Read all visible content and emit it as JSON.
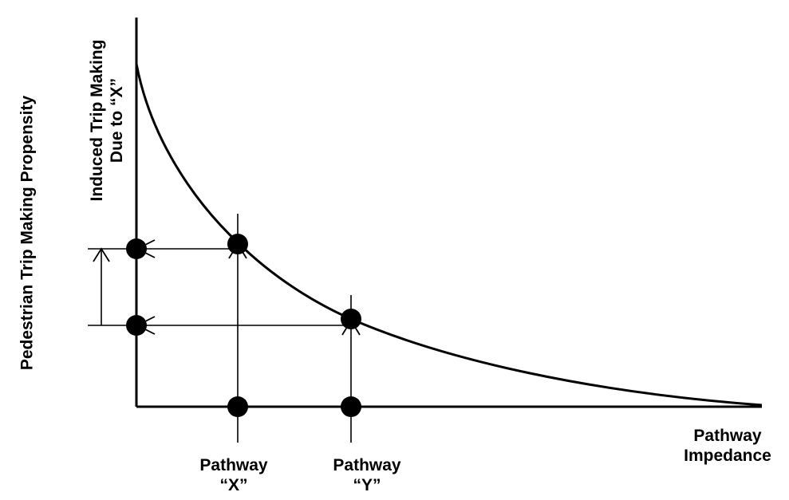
{
  "y_axis_label": "Pedestrian Trip Making Propensity",
  "induced_label": {
    "line1": "Induced Trip Making",
    "line2": "Due to “X”"
  },
  "x_axis_label": {
    "line1": "Pathway",
    "line2": "Impedance"
  },
  "pathway_x": {
    "line1": "Pathway",
    "line2": "“X”"
  },
  "pathway_y": {
    "line1": "Pathway",
    "line2": "“Y”"
  },
  "colors": {
    "ink": "#000000",
    "background": "#ffffff"
  }
}
